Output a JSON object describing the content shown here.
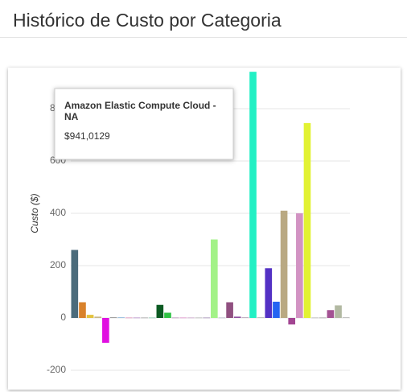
{
  "header": {
    "title": "Histórico de Custo por Categoria"
  },
  "chart_data": {
    "type": "bar",
    "y_label": "Custo ($)",
    "categories": [
      null,
      null,
      null,
      null,
      null,
      null,
      null,
      null,
      null,
      null,
      null,
      null,
      null,
      null,
      null,
      null,
      null,
      null,
      null,
      null,
      null,
      null,
      null,
      null,
      null,
      null,
      null,
      null,
      null,
      null,
      null,
      null,
      null,
      null,
      null,
      null
    ],
    "values": [
      260,
      60,
      12,
      5,
      -95,
      3,
      3,
      2,
      2,
      2,
      2,
      50,
      20,
      2,
      2,
      2,
      2,
      2,
      300,
      2,
      60,
      5,
      3,
      941.0129,
      3,
      190,
      62,
      410,
      -25,
      400,
      745,
      2,
      2,
      30,
      48,
      3
    ],
    "colors": [
      "#4b6b7b",
      "#d9822b",
      "#e3c33f",
      "#c8b88a",
      "#e010e0",
      "#a0a0a0",
      "#a0c0e0",
      "#e0a0c0",
      "#c0a0d0",
      "#b0b0b0",
      "#a0d0c0",
      "#0b5a22",
      "#2fc244",
      "#c0a0c0",
      "#e0a0d0",
      "#d0b0d0",
      "#c0c0c0",
      "#b0a0c0",
      "#a3f288",
      "#c0c0d0",
      "#905080",
      "#9050a0",
      "#c0b0c0",
      "#22f0c4",
      "#c0c0c0",
      "#5331c4",
      "#2464f2",
      "#b9a982",
      "#a24592",
      "#d293c3",
      "#e2f233",
      "#c0c0c0",
      "#b0b0b0",
      "#a35293",
      "#b2b9a2",
      "#c0c0c0"
    ],
    "ylim": [
      -200,
      900
    ],
    "yticks": [
      -200,
      0,
      200,
      400,
      600,
      800
    ],
    "grid": true,
    "tooltip": {
      "title": "Amazon Elastic Compute Cloud - NA",
      "value": "$941,0129"
    }
  }
}
